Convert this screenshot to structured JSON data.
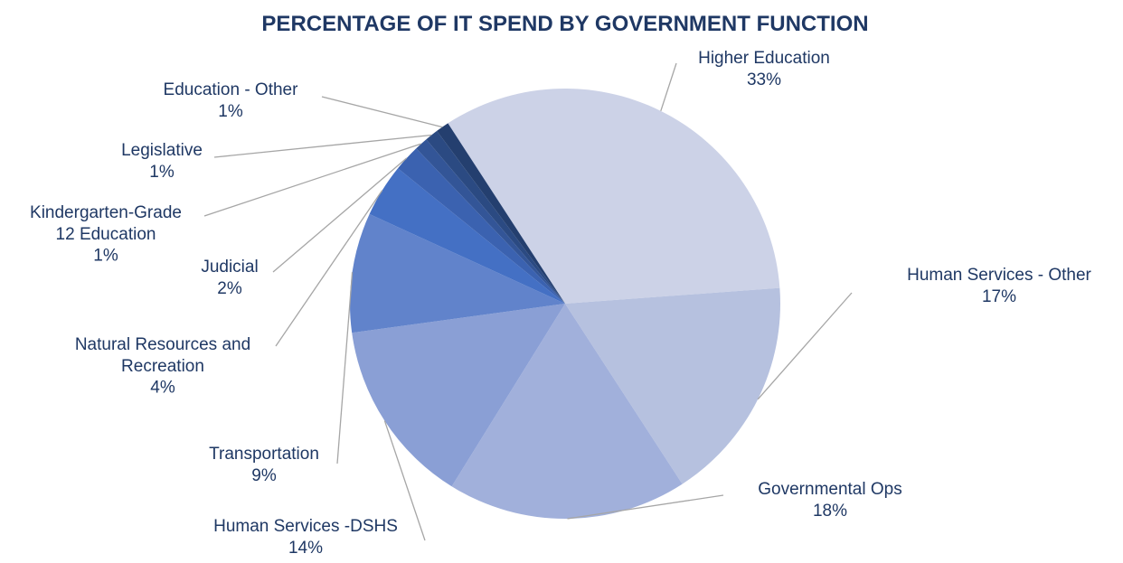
{
  "chart_data": {
    "type": "pie",
    "title": "PERCENTAGE OF IT SPEND BY GOVERNMENT FUNCTION",
    "slices": [
      {
        "label_lines": [
          "Higher Education"
        ],
        "value_label": "33%",
        "value": 33.0,
        "color": "#ccd2e7"
      },
      {
        "label_lines": [
          "Human Services - Other"
        ],
        "value_label": "17%",
        "value": 17.0,
        "color": "#b6c1df"
      },
      {
        "label_lines": [
          "Governmental Ops"
        ],
        "value_label": "18%",
        "value": 18.0,
        "color": "#a1b0db"
      },
      {
        "label_lines": [
          "Human Services -DSHS"
        ],
        "value_label": "14%",
        "value": 14.0,
        "color": "#8a9fd5"
      },
      {
        "label_lines": [
          "Transportation"
        ],
        "value_label": "9%",
        "value": 9.0,
        "color": "#6183cb"
      },
      {
        "label_lines": [
          "Natural Resources and",
          "Recreation"
        ],
        "value_label": "4%",
        "value": 4.0,
        "color": "#4470c4"
      },
      {
        "label_lines": [
          "Judicial"
        ],
        "value_label": "2%",
        "value": 2.0,
        "color": "#3b62b0"
      },
      {
        "label_lines": [
          "Kindergarten-Grade",
          "12 Education"
        ],
        "value_label": "1%",
        "value": 1.0,
        "color": "#335597"
      },
      {
        "label_lines": [
          "Legislative"
        ],
        "value_label": "1%",
        "value": 1.0,
        "color": "#2b4a82"
      },
      {
        "label_lines": [
          "Education - Other"
        ],
        "value_label": "1%",
        "value": 1.0,
        "color": "#243f6f"
      }
    ]
  }
}
